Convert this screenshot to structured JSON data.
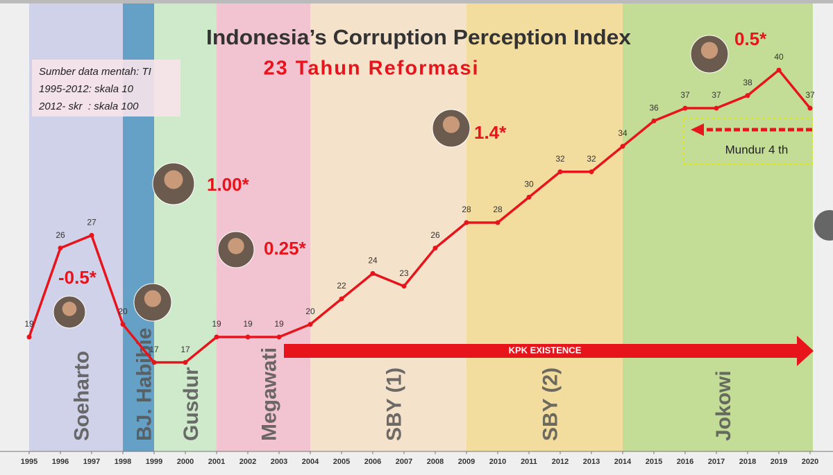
{
  "chart_data": {
    "type": "line",
    "title": "Indonesia’s Corruption Perception Index",
    "subtitle": "23 Tahun Reformasi",
    "source_note": [
      "Sumber data mentah: TI",
      "1995-2012: skala 10",
      "2012- skr  : skala 100"
    ],
    "x": [
      1995,
      1996,
      1997,
      1998,
      1999,
      2000,
      2001,
      2002,
      2003,
      2004,
      2005,
      2006,
      2007,
      2008,
      2009,
      2010,
      2011,
      2012,
      2013,
      2014,
      2015,
      2016,
      2017,
      2018,
      2019,
      2020
    ],
    "values": [
      19,
      26,
      27,
      20,
      17,
      17,
      19,
      19,
      19,
      20,
      22,
      24,
      23,
      26,
      28,
      28,
      30,
      32,
      32,
      34,
      36,
      37,
      37,
      38,
      40,
      37
    ],
    "color": "#e8141c",
    "xlim": [
      1995,
      2020
    ],
    "xticks": [
      1995,
      1996,
      1997,
      1998,
      1999,
      2000,
      2001,
      2002,
      2003,
      2004,
      2005,
      2006,
      2007,
      2008,
      2009,
      2010,
      2011,
      2012,
      2013,
      2014,
      2015,
      2016,
      2017,
      2018,
      2019,
      2020
    ],
    "ylim": [
      10,
      42
    ],
    "periods": [
      {
        "name": "Soeharto",
        "start": 1995,
        "end": 1998,
        "color": "#c9cce6"
      },
      {
        "name": "BJ. Habibie",
        "start": 1998,
        "end": 1999,
        "color": "#4c93bf"
      },
      {
        "name": "Gusdur",
        "start": 1999,
        "end": 2001,
        "color": "#c9e8c4"
      },
      {
        "name": "Megawati",
        "start": 2001,
        "end": 2004,
        "color": "#f2bccc"
      },
      {
        "name": "SBY (1)",
        "start": 2004,
        "end": 2009,
        "color": "#f6dfc4"
      },
      {
        "name": "SBY (2)",
        "start": 2009,
        "end": 2014,
        "color": "#f3d98f"
      },
      {
        "name": "Jokowi",
        "start": 2014,
        "end": 2020,
        "color": "#bcd986"
      }
    ],
    "annotations": [
      "-0.5*",
      "1.00*",
      "0.25*",
      "1.4*",
      "0.5*"
    ],
    "kpk_label": "KPK EXISTENCE",
    "setback_label": "Mundur 4 th"
  }
}
